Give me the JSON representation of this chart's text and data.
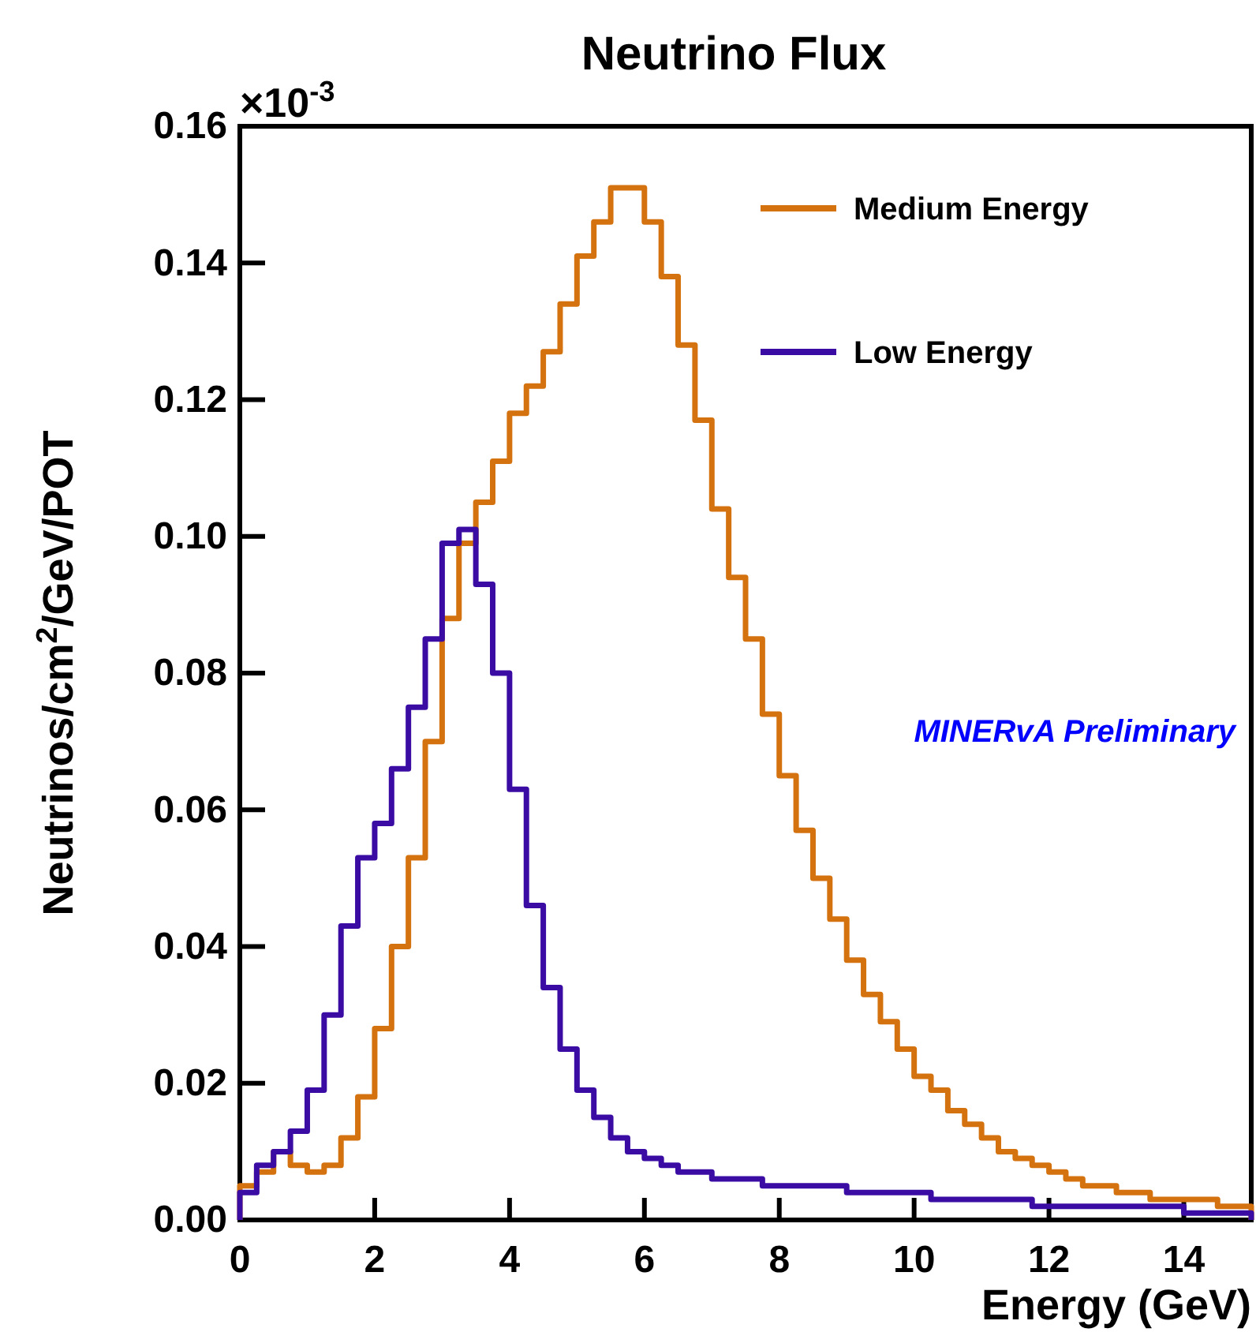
{
  "chart_data": {
    "type": "histogram",
    "title": "Neutrino Flux",
    "xlabel": "Energy (GeV)",
    "ylabel": "Neutrinos/cm$^{2}$/GeV/POT",
    "annotations": [
      "×10$^{-3}$",
      "MINERvA Preliminary"
    ],
    "bins": [
      0,
      0.25,
      0.5,
      0.75,
      1,
      1.25,
      1.5,
      1.75,
      2,
      2.25,
      2.5,
      2.75,
      3,
      3.25,
      3.5,
      3.75,
      4,
      4.25,
      4.5,
      4.75,
      5,
      5.25,
      5.5,
      5.75,
      6,
      6.25,
      6.5,
      6.75,
      7,
      7.25,
      7.5,
      7.75,
      8,
      8.25,
      8.5,
      8.75,
      9,
      9.25,
      9.5,
      9.75,
      10,
      10.25,
      10.5,
      10.75,
      11,
      11.25,
      11.5,
      11.75,
      12,
      12.25,
      12.5,
      12.75,
      13,
      13.25,
      13.5,
      13.75,
      14,
      14.25,
      14.5,
      14.75,
      15
    ],
    "series": [
      {
        "name": "Medium Energy",
        "color": "#d4720f",
        "values": [
          0.005,
          0.007,
          0.01,
          0.008,
          0.007,
          0.008,
          0.012,
          0.018,
          0.028,
          0.04,
          0.053,
          0.07,
          0.088,
          0.099,
          0.105,
          0.111,
          0.118,
          0.122,
          0.127,
          0.134,
          0.141,
          0.146,
          0.151,
          0.151,
          0.146,
          0.138,
          0.128,
          0.117,
          0.104,
          0.094,
          0.085,
          0.074,
          0.065,
          0.057,
          0.05,
          0.044,
          0.038,
          0.033,
          0.029,
          0.025,
          0.021,
          0.019,
          0.016,
          0.014,
          0.012,
          0.01,
          0.009,
          0.008,
          0.007,
          0.006,
          0.005,
          0.005,
          0.004,
          0.004,
          0.003,
          0.003,
          0.003,
          0.003,
          0.002,
          0.002
        ]
      },
      {
        "name": "Low Energy",
        "color": "#3a0ca3",
        "values": [
          0.004,
          0.008,
          0.01,
          0.013,
          0.019,
          0.03,
          0.043,
          0.053,
          0.058,
          0.066,
          0.075,
          0.085,
          0.099,
          0.101,
          0.093,
          0.08,
          0.063,
          0.046,
          0.034,
          0.025,
          0.019,
          0.015,
          0.012,
          0.01,
          0.009,
          0.008,
          0.007,
          0.007,
          0.006,
          0.006,
          0.006,
          0.005,
          0.005,
          0.005,
          0.005,
          0.005,
          0.004,
          0.004,
          0.004,
          0.004,
          0.004,
          0.003,
          0.003,
          0.003,
          0.003,
          0.003,
          0.003,
          0.002,
          0.002,
          0.002,
          0.002,
          0.002,
          0.002,
          0.002,
          0.002,
          0.002,
          0.001,
          0.001,
          0.001,
          0.001
        ]
      }
    ],
    "xlim": [
      0,
      15
    ],
    "xticks": [
      0,
      2,
      4,
      6,
      8,
      10,
      12,
      14
    ],
    "ylim": [
      0,
      0.16
    ],
    "yticks": [
      {
        "value": 0,
        "label": "0.00"
      },
      {
        "value": 0.02,
        "label": "0.02"
      },
      {
        "value": 0.04,
        "label": "0.04"
      },
      {
        "value": 0.06,
        "label": "0.06"
      },
      {
        "value": 0.08,
        "label": "0.08"
      },
      {
        "value": 0.1,
        "label": "0.10"
      },
      {
        "value": 0.12,
        "label": "0.12"
      },
      {
        "value": 0.14,
        "label": "0.14"
      },
      {
        "value": 0.16,
        "label": "0.16"
      }
    ],
    "legend": "top right",
    "grid": false
  }
}
